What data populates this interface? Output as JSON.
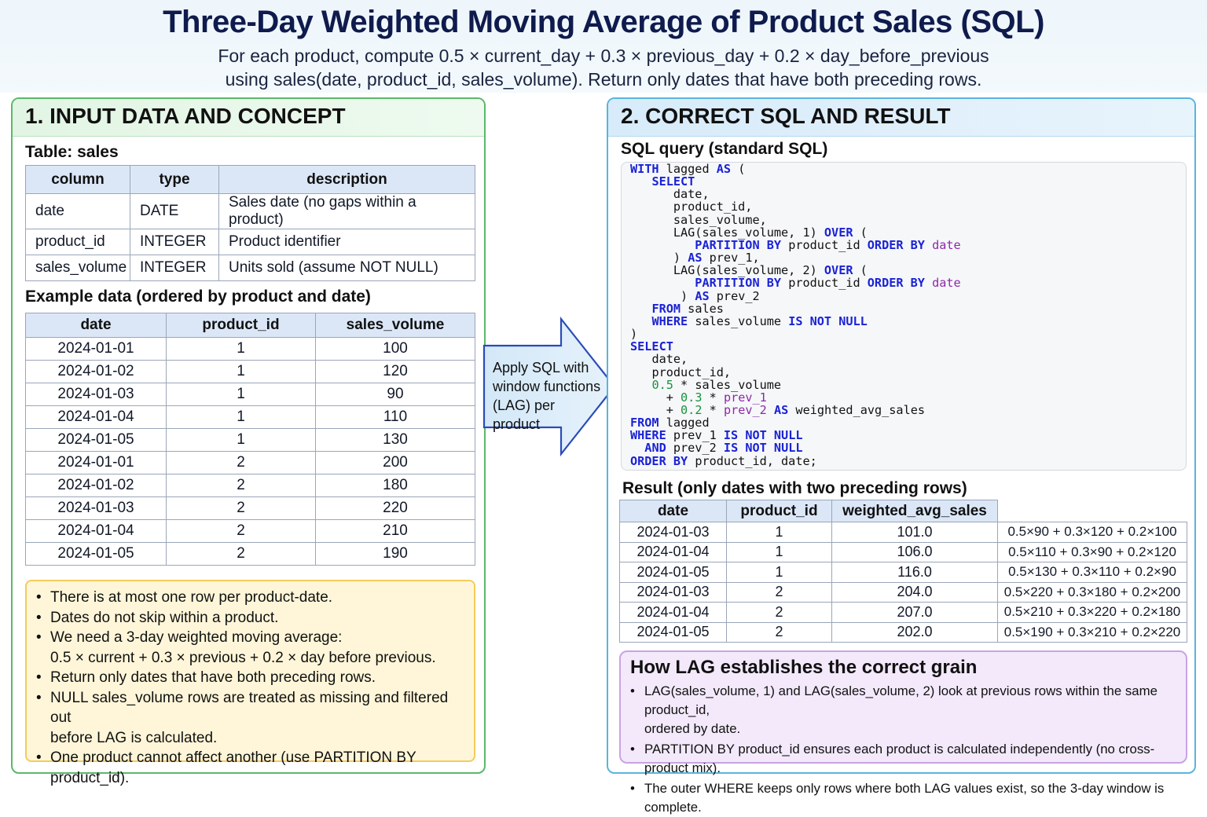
{
  "header": {
    "title": "Three-Day Weighted Moving Average of Product Sales (SQL)",
    "subtitle_line1": "For each product, compute 0.5 × current_day + 0.3 × previous_day + 0.2 × day_before_previous",
    "subtitle_line2": "using sales(date, product_id, sales_volume). Return only dates that have both preceding rows."
  },
  "left_panel": {
    "title": "1. INPUT DATA AND CONCEPT",
    "schema_title": "Table: sales",
    "schema_headers": [
      "column",
      "type",
      "description"
    ],
    "schema_rows": [
      [
        "date",
        "DATE",
        "Sales date (no gaps within a product)"
      ],
      [
        "product_id",
        "INTEGER",
        "Product identifier"
      ],
      [
        "sales_volume",
        "INTEGER",
        "Units sold (assume NOT NULL)"
      ]
    ],
    "example_title": "Example data (ordered by product and date)",
    "example_headers": [
      "date",
      "product_id",
      "sales_volume"
    ],
    "example_rows": [
      [
        "2024-01-01",
        "1",
        "100"
      ],
      [
        "2024-01-02",
        "1",
        "120"
      ],
      [
        "2024-01-03",
        "1",
        "90"
      ],
      [
        "2024-01-04",
        "1",
        "110"
      ],
      [
        "2024-01-05",
        "1",
        "130"
      ],
      [
        "2024-01-01",
        "2",
        "200"
      ],
      [
        "2024-01-02",
        "2",
        "180"
      ],
      [
        "2024-01-03",
        "2",
        "220"
      ],
      [
        "2024-01-04",
        "2",
        "210"
      ],
      [
        "2024-01-05",
        "2",
        "190"
      ]
    ],
    "notes": [
      "There is at most one row per product-date.",
      "Dates do not skip within a product.",
      "We need a 3-day weighted moving average:",
      "0.5 × current + 0.3 × previous + 0.2 × day before previous.",
      "Return only dates that have both preceding rows.",
      "NULL sales_volume rows are treated as missing and filtered out",
      "before LAG is calculated.",
      "One product cannot affect another (use PARTITION BY product_id)."
    ]
  },
  "arrow": {
    "line1": "Apply SQL with",
    "line2": "window functions",
    "line3": "(LAG) per product"
  },
  "right_panel": {
    "title": "2. CORRECT SQL AND RESULT",
    "sql_title": "SQL query (standard SQL)",
    "result_title": "Result (only dates with two preceding rows)",
    "result_headers": [
      "date",
      "product_id",
      "weighted_avg_sales"
    ],
    "result_rows": [
      [
        "2024-01-03",
        "1",
        "101.0",
        "0.5×90 + 0.3×120 + 0.2×100"
      ],
      [
        "2024-01-04",
        "1",
        "106.0",
        "0.5×110 + 0.3×90 + 0.2×120"
      ],
      [
        "2024-01-05",
        "1",
        "116.0",
        "0.5×130 + 0.3×110 + 0.2×90"
      ],
      [
        "2024-01-03",
        "2",
        "204.0",
        "0.5×220 + 0.3×180 + 0.2×200"
      ],
      [
        "2024-01-04",
        "2",
        "207.0",
        "0.5×210 + 0.3×220 + 0.2×180"
      ],
      [
        "2024-01-05",
        "2",
        "202.0",
        "0.5×190 + 0.3×210 + 0.2×220"
      ]
    ],
    "lag_title": "How LAG establishes the correct grain",
    "lag_points": [
      "LAG(sales_volume, 1) and LAG(sales_volume, 2) look at previous rows within the same product_id,",
      "ordered by date.",
      "PARTITION BY product_id ensures each product is calculated independently (no cross-product mix).",
      "The outer WHERE keeps only rows where both LAG values exist, so the 3-day window is complete."
    ]
  },
  "sql": {
    "with": "WITH",
    "lagged": "lagged",
    "as": "AS",
    "paren": "(",
    "select": "SELECT",
    "date_c": "date,",
    "product_id_c": "product_id,",
    "sales_volume_c": "sales_volume,",
    "lag1": "LAG(sales_volume, 1)",
    "over": "OVER",
    "partition_by": "PARTITION BY",
    "product_id": "product_id",
    "order_by": "ORDER BY",
    "date": "date",
    "close": ")",
    "prev_1_c": "prev_1,",
    "lag2": "LAG(sales_volume, 2)",
    "prev_2": "prev_2",
    "from": "FROM",
    "sales": "sales",
    "where": "WHERE",
    "sales_volume": "sales_volume",
    "is_not_null": "IS NOT NULL",
    "n05": "0.5",
    "star": "*",
    "plus": "+",
    "n03": "0.3",
    "prev_1": "prev_1",
    "n02": "0.2",
    "weighted_avg_sales": "weighted_avg_sales",
    "and": "AND",
    "order_tail": "product_id, date;"
  },
  "colors": {
    "keyword": "#1a22d6",
    "number": "#17933a",
    "date_keyword": "#8b2aa8",
    "left_border": "#5bb86a",
    "right_border": "#5ab4dd",
    "note_bg": "#fff6d9",
    "lag_bg": "#f3e9fb"
  }
}
